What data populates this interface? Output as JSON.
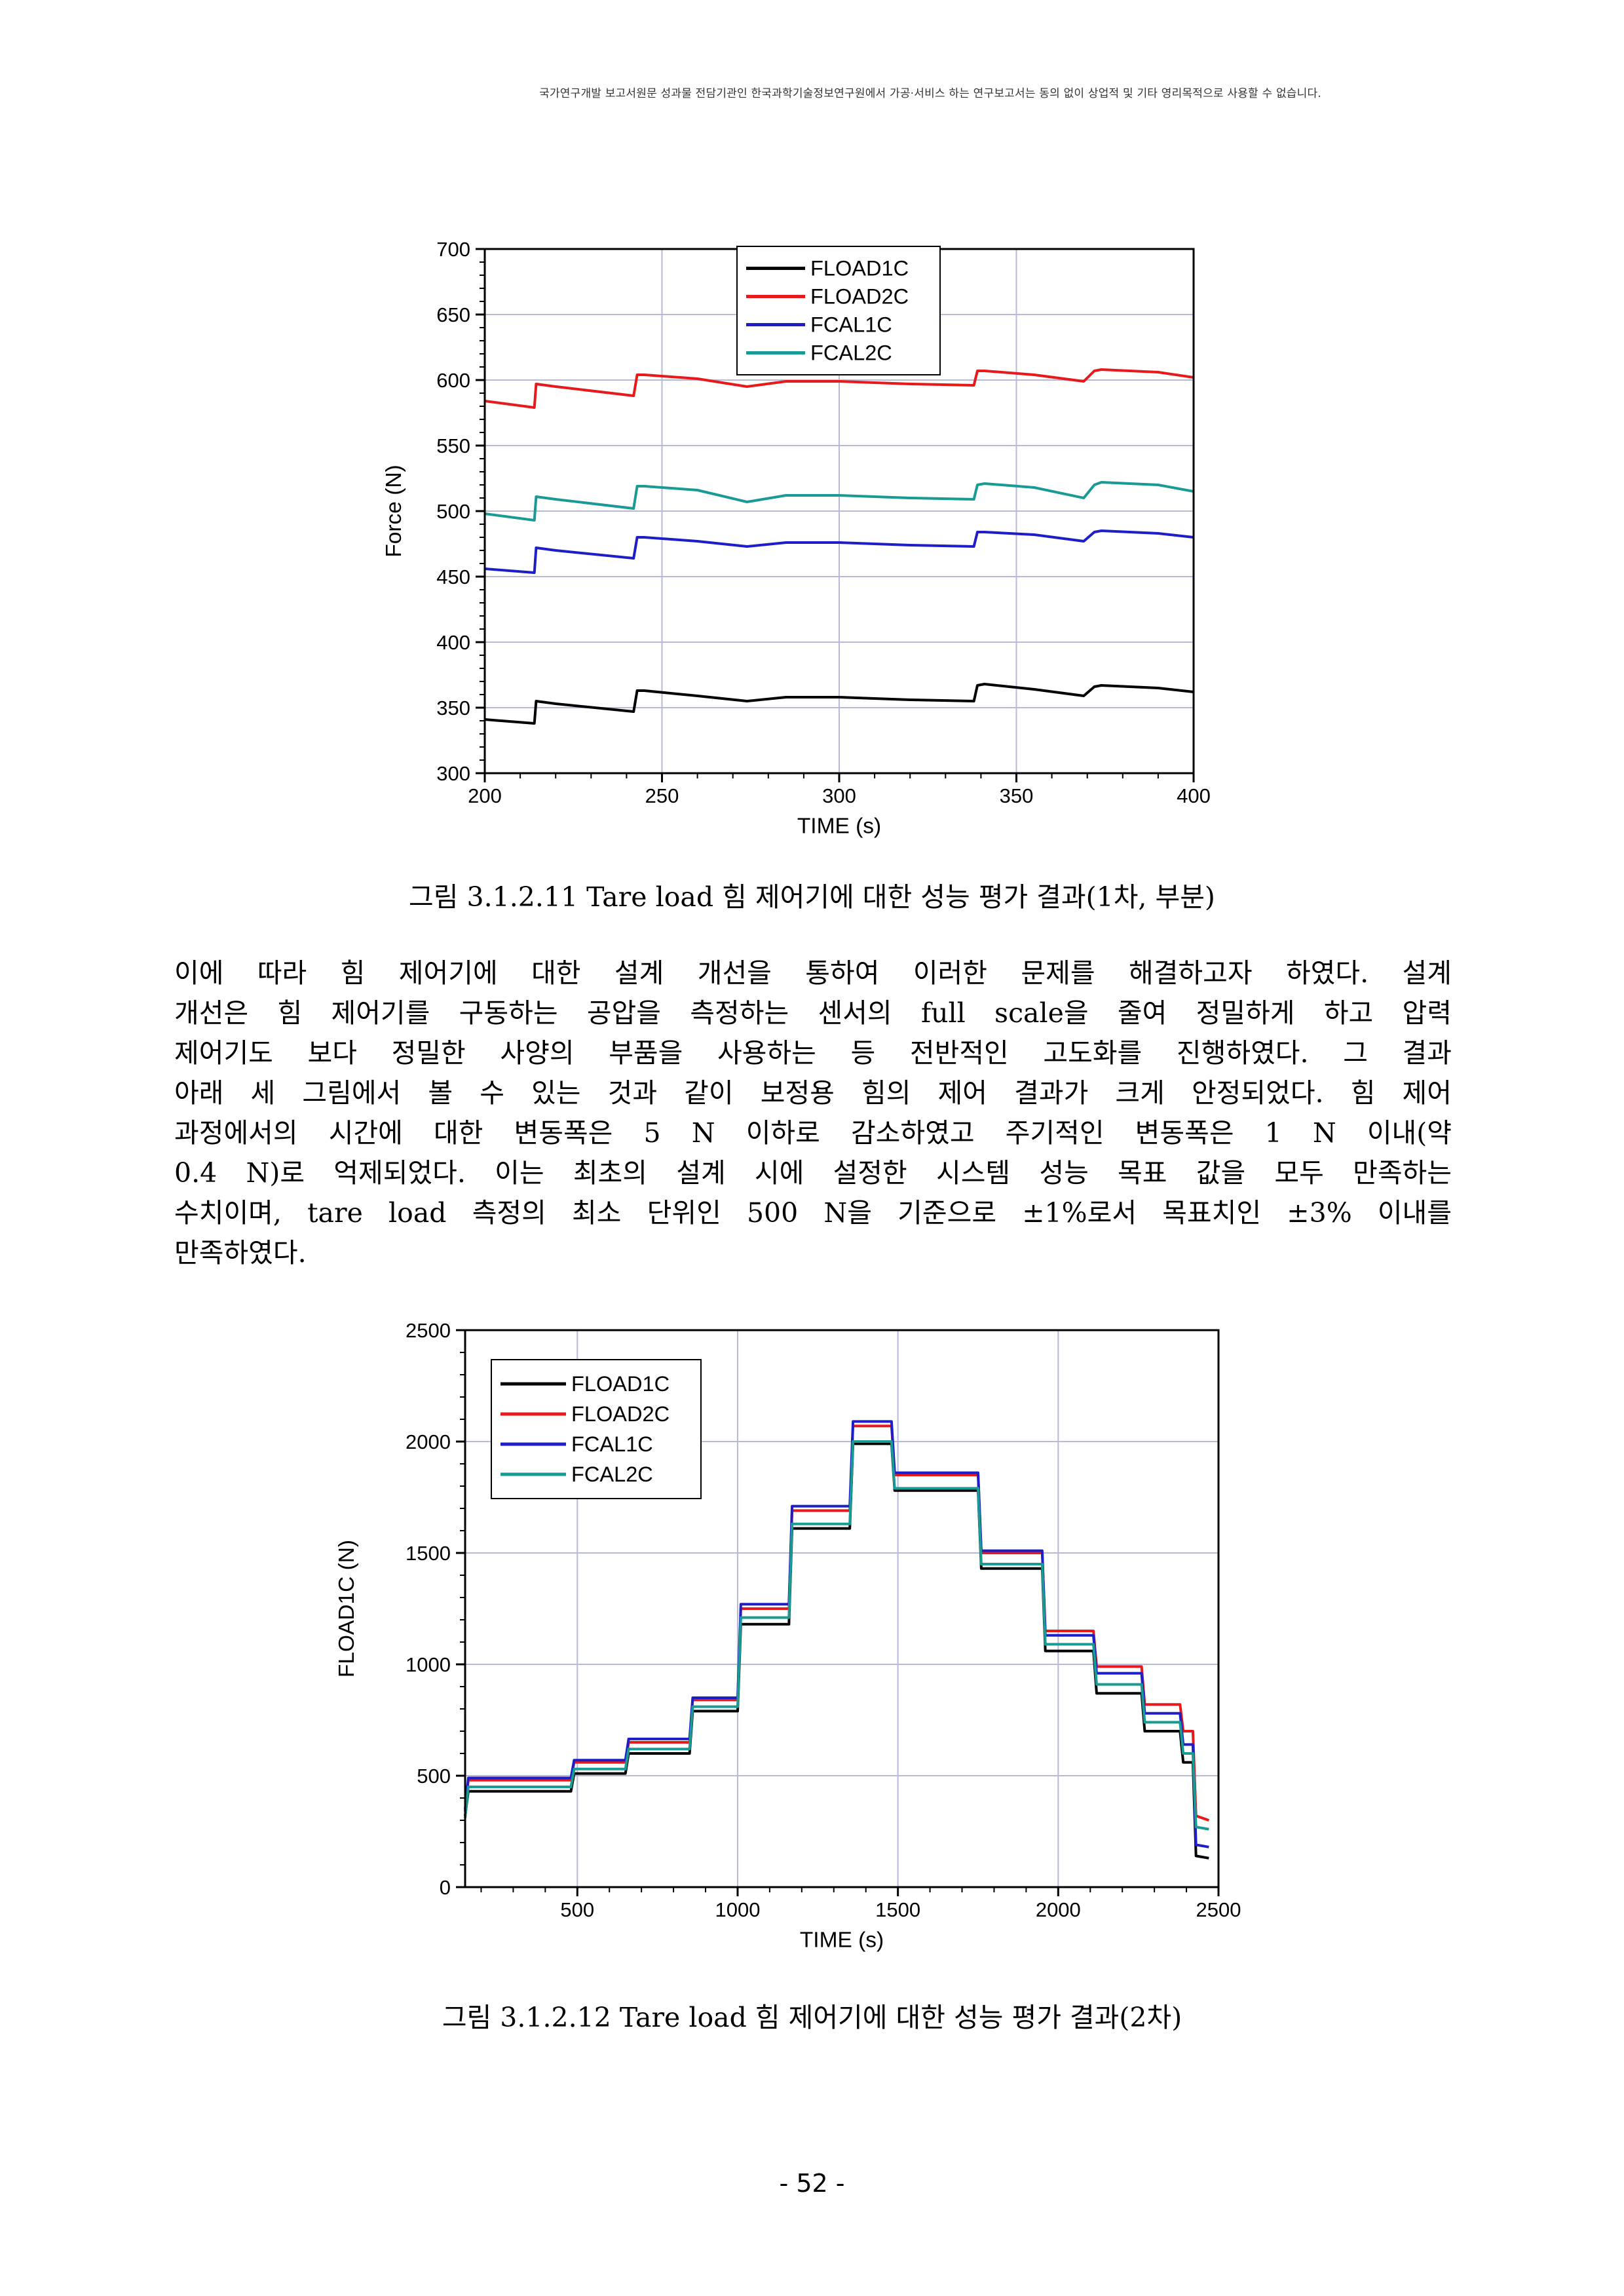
{
  "header": {
    "notice": "국가연구개발 보고서원문 성과물 전담기관인 한국과학기술정보연구원에서 가공·서비스 하는 연구보고서는 동의 없이 상업적 및 기타 영리목적으로 사용할 수 없습니다."
  },
  "figure1": {
    "caption": "그림 3.1.2.11 Tare load 힘 제어기에 대한 성능 평가 결과(1차, 부분)"
  },
  "figure2": {
    "caption": "그림 3.1.2.12 Tare load 힘 제어기에 대한 성능 평가 결과(2차)"
  },
  "body": {
    "lines": [
      " 이에 따라 힘 제어기에 대한 설계 개선을 통하여 이러한 문제를 해결하고자 하였다. 설계",
      "개선은 힘 제어기를 구동하는 공압을 측정하는 센서의 full scale을 줄여 정밀하게 하고 압력",
      "제어기도 보다 정밀한 사양의 부품을 사용하는 등 전반적인 고도화를 진행하였다. 그 결과",
      "아래 세 그림에서 볼 수 있는 것과 같이 보정용 힘의 제어 결과가 크게 안정되었다. 힘 제어",
      "과정에서의 시간에 대한 변동폭은 5 N 이하로 감소하였고 주기적인 변동폭은 1 N 이내(약",
      "0.4 N)로 억제되었다. 이는 최초의 설계 시에 설정한 시스템 성능 목표 값을 모두 만족하는",
      "수치이며, tare load 측정의 최소 단위인 500 N을 기준으로 ±1%로서 목표치인 ±3% 이내를",
      "만족하였다."
    ]
  },
  "page": {
    "number": "- 52 -"
  },
  "chart_data": [
    {
      "type": "line",
      "xlabel": "TIME (s)",
      "ylabel": "Force (N)",
      "xlim": [
        200,
        400
      ],
      "ylim": [
        300,
        700
      ],
      "xticks": [
        200,
        250,
        300,
        350,
        400
      ],
      "yticks": [
        300,
        350,
        400,
        450,
        500,
        550,
        600,
        650,
        700
      ],
      "grid": true,
      "legend_position": "top-center",
      "series": [
        {
          "name": "FLOAD1C",
          "color": "#000000",
          "x": [
            200,
            214,
            214.5,
            220,
            242,
            243,
            245,
            260,
            274,
            285,
            300,
            320,
            338,
            339,
            341,
            355,
            369,
            372,
            374,
            390,
            400
          ],
          "y": [
            341,
            338,
            355,
            353,
            347,
            363,
            363,
            359,
            355,
            358,
            358,
            356,
            355,
            367,
            368,
            364,
            359,
            366,
            367,
            365,
            362
          ]
        },
        {
          "name": "FLOAD2C",
          "color": "#e8191a",
          "x": [
            200,
            214,
            214.5,
            220,
            242,
            243,
            245,
            260,
            274,
            285,
            300,
            320,
            338,
            339,
            341,
            355,
            369,
            372,
            374,
            390,
            400
          ],
          "y": [
            584,
            579,
            597,
            595,
            588,
            604,
            604,
            601,
            595,
            599,
            599,
            597,
            596,
            607,
            607,
            604,
            599,
            607,
            608,
            606,
            602
          ]
        },
        {
          "name": "FCAL1C",
          "color": "#1e1ec8",
          "x": [
            200,
            214,
            214.5,
            220,
            242,
            243,
            245,
            260,
            274,
            285,
            300,
            320,
            338,
            339,
            341,
            355,
            369,
            372,
            374,
            390,
            400
          ],
          "y": [
            456,
            453,
            472,
            470,
            464,
            480,
            480,
            477,
            473,
            476,
            476,
            474,
            473,
            484,
            484,
            482,
            477,
            484,
            485,
            483,
            480
          ]
        },
        {
          "name": "FCAL2C",
          "color": "#1a9a94",
          "x": [
            200,
            214,
            214.5,
            220,
            242,
            243,
            245,
            260,
            274,
            285,
            300,
            320,
            338,
            339,
            341,
            355,
            369,
            372,
            374,
            390,
            400
          ],
          "y": [
            498,
            493,
            511,
            509,
            502,
            519,
            519,
            516,
            507,
            512,
            512,
            510,
            509,
            520,
            521,
            518,
            510,
            520,
            522,
            520,
            515
          ]
        }
      ]
    },
    {
      "type": "line",
      "xlabel": "TIME (s)",
      "ylabel": "FLOAD1C (N)",
      "xlim": [
        150,
        2500
      ],
      "ylim": [
        0,
        2500
      ],
      "xticks": [
        500,
        1000,
        1500,
        2000,
        2500
      ],
      "yticks": [
        0,
        500,
        1000,
        1500,
        2000,
        2500
      ],
      "grid": true,
      "legend_position": "top-left",
      "series": [
        {
          "name": "FLOAD1C",
          "color": "#000000",
          "x": [
            150,
            160,
            480,
            490,
            650,
            660,
            850,
            860,
            1000,
            1010,
            1160,
            1170,
            1350,
            1360,
            1480,
            1490,
            1750,
            1760,
            1950,
            1960,
            2110,
            2120,
            2260,
            2270,
            2380,
            2390,
            2420,
            2430,
            2470
          ],
          "y": [
            320,
            430,
            430,
            510,
            510,
            600,
            600,
            790,
            790,
            1180,
            1180,
            1610,
            1610,
            1990,
            1990,
            1780,
            1780,
            1430,
            1430,
            1060,
            1060,
            870,
            870,
            700,
            700,
            560,
            560,
            140,
            130
          ]
        },
        {
          "name": "FLOAD2C",
          "color": "#e8191a",
          "x": [
            150,
            160,
            480,
            490,
            650,
            660,
            850,
            860,
            1000,
            1010,
            1160,
            1170,
            1350,
            1360,
            1480,
            1490,
            1750,
            1760,
            1950,
            1960,
            2110,
            2120,
            2260,
            2270,
            2380,
            2390,
            2420,
            2430,
            2470
          ],
          "y": [
            340,
            480,
            480,
            560,
            560,
            650,
            650,
            840,
            840,
            1250,
            1250,
            1690,
            1690,
            2070,
            2070,
            1850,
            1850,
            1500,
            1500,
            1150,
            1150,
            990,
            990,
            820,
            820,
            700,
            700,
            320,
            300
          ]
        },
        {
          "name": "FCAL1C",
          "color": "#1e1ec8",
          "x": [
            150,
            160,
            480,
            490,
            650,
            660,
            850,
            860,
            1000,
            1010,
            1160,
            1170,
            1350,
            1360,
            1480,
            1490,
            1750,
            1760,
            1950,
            1960,
            2110,
            2120,
            2260,
            2270,
            2380,
            2390,
            2420,
            2430,
            2470
          ],
          "y": [
            350,
            490,
            490,
            570,
            570,
            665,
            665,
            850,
            850,
            1270,
            1270,
            1710,
            1710,
            2090,
            2090,
            1860,
            1860,
            1510,
            1510,
            1130,
            1130,
            960,
            960,
            780,
            780,
            640,
            640,
            190,
            180
          ]
        },
        {
          "name": "FCAL2C",
          "color": "#1a9a94",
          "x": [
            150,
            160,
            480,
            490,
            650,
            660,
            850,
            860,
            1000,
            1010,
            1160,
            1170,
            1350,
            1360,
            1480,
            1490,
            1750,
            1760,
            1950,
            1960,
            2110,
            2120,
            2260,
            2270,
            2380,
            2390,
            2420,
            2430,
            2470
          ],
          "y": [
            310,
            450,
            450,
            530,
            530,
            620,
            620,
            810,
            810,
            1210,
            1210,
            1630,
            1630,
            2000,
            2000,
            1790,
            1790,
            1450,
            1450,
            1090,
            1090,
            910,
            910,
            740,
            740,
            600,
            600,
            270,
            260
          ]
        }
      ]
    }
  ]
}
